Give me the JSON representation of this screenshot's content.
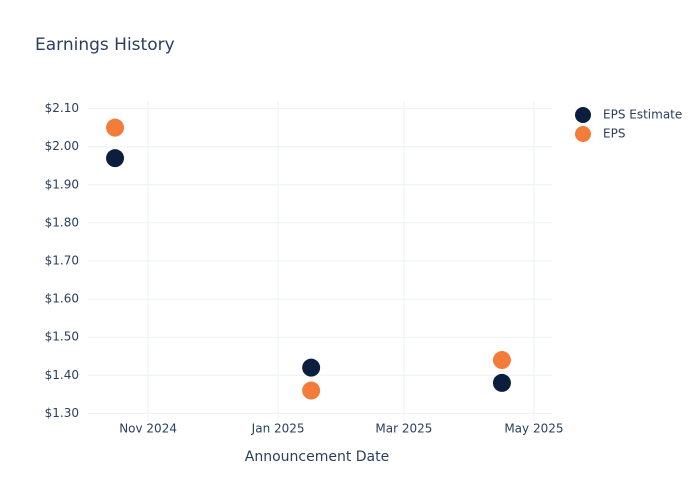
{
  "chart_data": {
    "type": "scatter",
    "title": "Earnings History",
    "x_label": "Announcement Date",
    "x": [
      "2024-10",
      "2025-01",
      "2025-04"
    ],
    "series": [
      {
        "name": "EPS Estimate",
        "color": "#0c1e3e",
        "values": [
          1.97,
          1.42,
          1.38
        ]
      },
      {
        "name": "EPS",
        "color": "#f47c3a",
        "values": [
          2.05,
          1.36,
          1.44
        ]
      }
    ],
    "xlim": [
      "2024-10",
      "2025-05"
    ],
    "xticks": [
      {
        "value": "2024-11",
        "label": "Nov 2024"
      },
      {
        "value": "2025-01",
        "label": "Jan 2025"
      },
      {
        "value": "2025-03",
        "label": "Mar 2025"
      },
      {
        "value": "2025-05",
        "label": "May 2025"
      }
    ],
    "ylim": [
      1.28,
      2.12
    ],
    "yticks": [
      {
        "value": 1.3,
        "label": "$1.30"
      },
      {
        "value": 1.4,
        "label": "$1.40"
      },
      {
        "value": 1.5,
        "label": "$1.50"
      },
      {
        "value": 1.6,
        "label": "$1.60"
      },
      {
        "value": 1.7,
        "label": "$1.70"
      },
      {
        "value": 1.8,
        "label": "$1.80"
      },
      {
        "value": 1.9,
        "label": "$1.90"
      },
      {
        "value": 2.0,
        "label": "$2.00"
      },
      {
        "value": 2.1,
        "label": "$2.10"
      }
    ],
    "grid": true,
    "legend": "top-right"
  }
}
